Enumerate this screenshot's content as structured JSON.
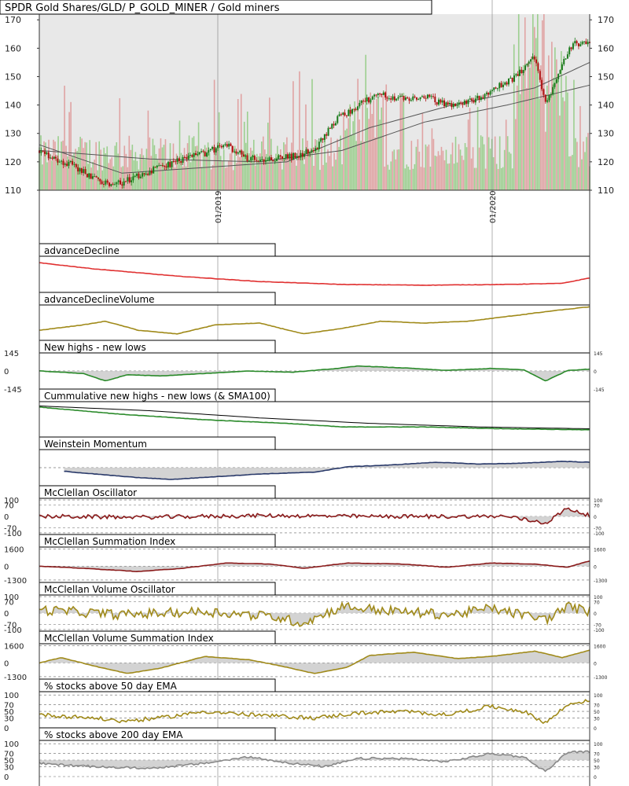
{
  "title": "SPDR Gold Shares/GLD/ P_GOLD_MINER / Gold miners",
  "colors": {
    "panel_bg": "#e8e8e8",
    "candle_up": "#1a7a1a",
    "candle_down": "#b01010",
    "vol_up": "#9ccf8f",
    "vol_down": "#e0a3a3",
    "sma": "#555555",
    "red": "#e03030",
    "olive": "#a08a1a",
    "green": "#2a8a2a",
    "navy": "#2a3a6a",
    "maroon": "#8a1a1a",
    "gray": "#888888",
    "fill": "#c8c8c8",
    "vline": "#777777"
  },
  "chart_data": [
    {
      "type": "candlestick",
      "name": "main",
      "ylim": [
        110,
        172
      ],
      "y_ticks": [
        110,
        120,
        130,
        140,
        150,
        160,
        170
      ],
      "x_tick_labels": [
        "01/2019",
        "01/2020"
      ],
      "x_range": [
        "2018-07",
        "2020-07"
      ],
      "price_path": [
        [
          0,
          124
        ],
        [
          0.03,
          121
        ],
        [
          0.06,
          119
        ],
        [
          0.1,
          114
        ],
        [
          0.14,
          112
        ],
        [
          0.18,
          115
        ],
        [
          0.22,
          118
        ],
        [
          0.26,
          121
        ],
        [
          0.3,
          123
        ],
        [
          0.34,
          126
        ],
        [
          0.38,
          121
        ],
        [
          0.42,
          121
        ],
        [
          0.46,
          122
        ],
        [
          0.5,
          124
        ],
        [
          0.54,
          135
        ],
        [
          0.58,
          140
        ],
        [
          0.62,
          144
        ],
        [
          0.66,
          142
        ],
        [
          0.7,
          143
        ],
        [
          0.74,
          140
        ],
        [
          0.78,
          141
        ],
        [
          0.82,
          145
        ],
        [
          0.86,
          149
        ],
        [
          0.9,
          157
        ],
        [
          0.92,
          140
        ],
        [
          0.95,
          155
        ],
        [
          0.97,
          162
        ],
        [
          1.0,
          161
        ]
      ],
      "sma_short": [
        [
          0,
          126
        ],
        [
          0.15,
          116
        ],
        [
          0.3,
          118
        ],
        [
          0.45,
          120
        ],
        [
          0.6,
          132
        ],
        [
          0.75,
          140
        ],
        [
          0.9,
          146
        ],
        [
          1.0,
          155
        ]
      ],
      "sma_long": [
        [
          0,
          124
        ],
        [
          0.2,
          121
        ],
        [
          0.4,
          120
        ],
        [
          0.55,
          124
        ],
        [
          0.7,
          134
        ],
        [
          0.85,
          140
        ],
        [
          1.0,
          147
        ]
      ]
    },
    {
      "type": "line",
      "label": "advanceDecline",
      "series_color": "red",
      "ylim": [
        0,
        1
      ],
      "points": [
        [
          0,
          0.82
        ],
        [
          0.1,
          0.65
        ],
        [
          0.25,
          0.45
        ],
        [
          0.4,
          0.3
        ],
        [
          0.55,
          0.22
        ],
        [
          0.7,
          0.2
        ],
        [
          0.85,
          0.22
        ],
        [
          0.95,
          0.25
        ],
        [
          1.0,
          0.4
        ]
      ]
    },
    {
      "type": "line",
      "label": "advanceDeclineVolume",
      "series_color": "olive",
      "ylim": [
        0,
        1
      ],
      "points": [
        [
          0,
          0.3
        ],
        [
          0.08,
          0.45
        ],
        [
          0.12,
          0.55
        ],
        [
          0.18,
          0.3
        ],
        [
          0.25,
          0.2
        ],
        [
          0.32,
          0.45
        ],
        [
          0.4,
          0.5
        ],
        [
          0.48,
          0.2
        ],
        [
          0.55,
          0.35
        ],
        [
          0.62,
          0.55
        ],
        [
          0.7,
          0.5
        ],
        [
          0.78,
          0.55
        ],
        [
          0.86,
          0.7
        ],
        [
          0.94,
          0.85
        ],
        [
          1.0,
          0.95
        ]
      ]
    },
    {
      "type": "line",
      "label": "New highs - new lows",
      "series_color": "green",
      "ylim": [
        -145,
        145
      ],
      "left_ticks": [
        "145",
        "0",
        "-145"
      ],
      "right_ticks": [
        "145",
        "0",
        "-145"
      ],
      "fill_to_zero": true,
      "points": [
        [
          0,
          0
        ],
        [
          0.08,
          -20
        ],
        [
          0.12,
          -80
        ],
        [
          0.16,
          -30
        ],
        [
          0.22,
          -40
        ],
        [
          0.3,
          -20
        ],
        [
          0.38,
          0
        ],
        [
          0.46,
          -10
        ],
        [
          0.54,
          20
        ],
        [
          0.58,
          40
        ],
        [
          0.66,
          25
        ],
        [
          0.74,
          5
        ],
        [
          0.82,
          20
        ],
        [
          0.88,
          10
        ],
        [
          0.92,
          -80
        ],
        [
          0.96,
          5
        ],
        [
          1.0,
          15
        ]
      ]
    },
    {
      "type": "line",
      "label": "Cummulative new highs - new lows (& SMA100)",
      "series_color": "green",
      "ylim": [
        0,
        1
      ],
      "points": [
        [
          0,
          0.85
        ],
        [
          0.15,
          0.65
        ],
        [
          0.3,
          0.5
        ],
        [
          0.45,
          0.4
        ],
        [
          0.55,
          0.3
        ],
        [
          0.7,
          0.3
        ],
        [
          0.85,
          0.25
        ],
        [
          1.0,
          0.22
        ]
      ],
      "sma": [
        [
          0,
          0.88
        ],
        [
          0.2,
          0.75
        ],
        [
          0.4,
          0.55
        ],
        [
          0.6,
          0.4
        ],
        [
          0.8,
          0.3
        ],
        [
          1.0,
          0.25
        ]
      ]
    },
    {
      "type": "line",
      "label": "Weinstein Momentum",
      "series_color": "navy",
      "ylim": [
        -1,
        1
      ],
      "fill_to_zero": true,
      "start": 0.045,
      "points": [
        [
          0.045,
          -0.2
        ],
        [
          0.1,
          -0.35
        ],
        [
          0.18,
          -0.55
        ],
        [
          0.24,
          -0.65
        ],
        [
          0.32,
          -0.5
        ],
        [
          0.4,
          -0.35
        ],
        [
          0.5,
          -0.25
        ],
        [
          0.56,
          0.05
        ],
        [
          0.64,
          0.15
        ],
        [
          0.72,
          0.3
        ],
        [
          0.8,
          0.2
        ],
        [
          0.88,
          0.25
        ],
        [
          0.95,
          0.35
        ],
        [
          1.0,
          0.3
        ]
      ]
    },
    {
      "type": "line",
      "label": "McClellan Oscillator",
      "series_color": "maroon",
      "ylim": [
        -110,
        110
      ],
      "left_ticks": [
        "100",
        "70",
        "0",
        "-70",
        "-100"
      ],
      "right_ticks": [
        "100",
        "70",
        "0",
        "-70",
        "-100"
      ],
      "guides": [
        100,
        70,
        0,
        -70,
        -100
      ],
      "fill_to_zero": true,
      "noise": 12,
      "points": [
        [
          0,
          0
        ],
        [
          0.2,
          -5
        ],
        [
          0.4,
          5
        ],
        [
          0.6,
          0
        ],
        [
          0.85,
          0
        ],
        [
          0.92,
          -40
        ],
        [
          0.96,
          50
        ],
        [
          1.0,
          5
        ]
      ]
    },
    {
      "type": "line",
      "label": "McClellan Summation Index",
      "series_color": "maroon",
      "ylim": [
        -1600,
        1800
      ],
      "left_ticks": [
        "1600",
        "0",
        "-1300"
      ],
      "right_ticks": [
        "1600",
        "0",
        "-1300"
      ],
      "guides": [
        1600,
        0,
        -1300
      ],
      "fill_to_zero": true,
      "points": [
        [
          0,
          0
        ],
        [
          0.08,
          -200
        ],
        [
          0.18,
          -500
        ],
        [
          0.26,
          -200
        ],
        [
          0.34,
          300
        ],
        [
          0.42,
          200
        ],
        [
          0.48,
          -200
        ],
        [
          0.56,
          300
        ],
        [
          0.66,
          200
        ],
        [
          0.74,
          -100
        ],
        [
          0.82,
          300
        ],
        [
          0.9,
          200
        ],
        [
          0.96,
          -100
        ],
        [
          1.0,
          500
        ]
      ]
    },
    {
      "type": "line",
      "label": "McClellan Volume Oscillator",
      "series_color": "olive",
      "ylim": [
        -110,
        110
      ],
      "left_ticks": [
        "100",
        "70",
        "0",
        "-70",
        "-100"
      ],
      "right_ticks": [
        "100",
        "70",
        "0",
        "-70",
        "-100"
      ],
      "guides": [
        100,
        70,
        0,
        -70,
        -100
      ],
      "fill_to_zero": true,
      "noise": 30,
      "points": [
        [
          0,
          20
        ],
        [
          0.15,
          -10
        ],
        [
          0.3,
          10
        ],
        [
          0.42,
          -20
        ],
        [
          0.48,
          -60
        ],
        [
          0.55,
          40
        ],
        [
          0.65,
          10
        ],
        [
          0.75,
          -10
        ],
        [
          0.82,
          30
        ],
        [
          0.92,
          -40
        ],
        [
          0.96,
          40
        ],
        [
          1.0,
          10
        ]
      ]
    },
    {
      "type": "line",
      "label": "McClellan Volume Summation Index",
      "series_color": "olive",
      "ylim": [
        -1600,
        1800
      ],
      "left_ticks": [
        "1600",
        "0",
        "-1300"
      ],
      "right_ticks": [
        "1600",
        "0",
        "-1300"
      ],
      "guides": [
        1600,
        0,
        -1300
      ],
      "fill_to_zero": true,
      "points": [
        [
          0,
          0
        ],
        [
          0.04,
          500
        ],
        [
          0.1,
          -300
        ],
        [
          0.16,
          -1000
        ],
        [
          0.22,
          -500
        ],
        [
          0.3,
          600
        ],
        [
          0.38,
          300
        ],
        [
          0.44,
          -300
        ],
        [
          0.5,
          -1000
        ],
        [
          0.56,
          -400
        ],
        [
          0.6,
          700
        ],
        [
          0.68,
          1000
        ],
        [
          0.76,
          400
        ],
        [
          0.82,
          600
        ],
        [
          0.9,
          1100
        ],
        [
          0.95,
          500
        ],
        [
          1.0,
          1200
        ]
      ]
    },
    {
      "type": "line",
      "label": "% stocks above 50 day EMA",
      "series_color": "olive",
      "ylim": [
        0,
        110
      ],
      "left_ticks": [
        "100",
        "70",
        "50",
        "30",
        "0"
      ],
      "right_ticks": [
        "100",
        "70",
        "50",
        "30",
        "0"
      ],
      "guides": [
        100,
        70,
        50,
        30,
        0
      ],
      "noise": 6,
      "points": [
        [
          0,
          40
        ],
        [
          0.1,
          30
        ],
        [
          0.15,
          20
        ],
        [
          0.22,
          30
        ],
        [
          0.3,
          50
        ],
        [
          0.38,
          40
        ],
        [
          0.44,
          35
        ],
        [
          0.5,
          30
        ],
        [
          0.58,
          45
        ],
        [
          0.66,
          50
        ],
        [
          0.74,
          40
        ],
        [
          0.82,
          65
        ],
        [
          0.88,
          50
        ],
        [
          0.92,
          15
        ],
        [
          0.96,
          70
        ],
        [
          1.0,
          85
        ]
      ]
    },
    {
      "type": "line",
      "label": "% stocks above 200 day EMA",
      "series_color": "gray",
      "ylim": [
        0,
        110
      ],
      "left_ticks": [
        "100",
        "70",
        "50",
        "30",
        "0"
      ],
      "right_ticks": [
        "100",
        "70",
        "50",
        "30",
        "0"
      ],
      "guides": [
        100,
        70,
        50,
        30,
        0
      ],
      "fill_to_50": true,
      "noise": 3,
      "points": [
        [
          0,
          40
        ],
        [
          0.1,
          30
        ],
        [
          0.2,
          25
        ],
        [
          0.3,
          40
        ],
        [
          0.38,
          60
        ],
        [
          0.46,
          40
        ],
        [
          0.52,
          30
        ],
        [
          0.58,
          55
        ],
        [
          0.66,
          55
        ],
        [
          0.74,
          45
        ],
        [
          0.82,
          70
        ],
        [
          0.88,
          60
        ],
        [
          0.92,
          15
        ],
        [
          0.96,
          75
        ],
        [
          1.0,
          75
        ]
      ]
    }
  ]
}
